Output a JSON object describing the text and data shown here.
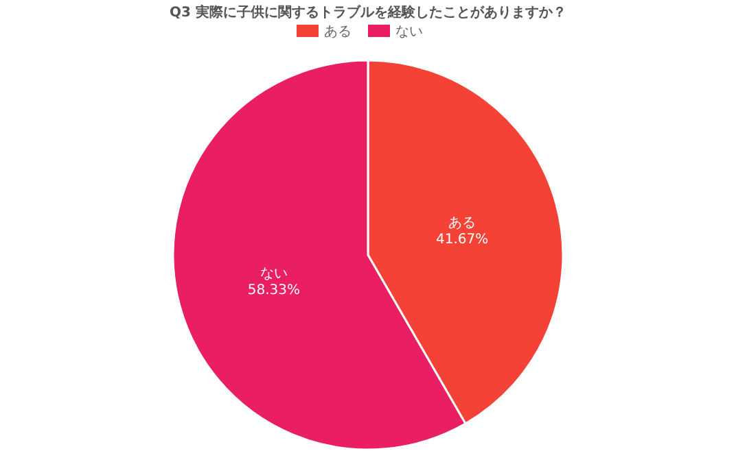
{
  "chart_data": {
    "type": "pie",
    "title": "Q3 実際に子供に関するトラブルを経験したことがありますか？",
    "categories": [
      "ある",
      "ない"
    ],
    "values": [
      41.67,
      58.33
    ],
    "colors": [
      "#f44336",
      "#e91e63"
    ],
    "value_labels": [
      "41.67%",
      "58.33%"
    ],
    "legend": "top"
  }
}
